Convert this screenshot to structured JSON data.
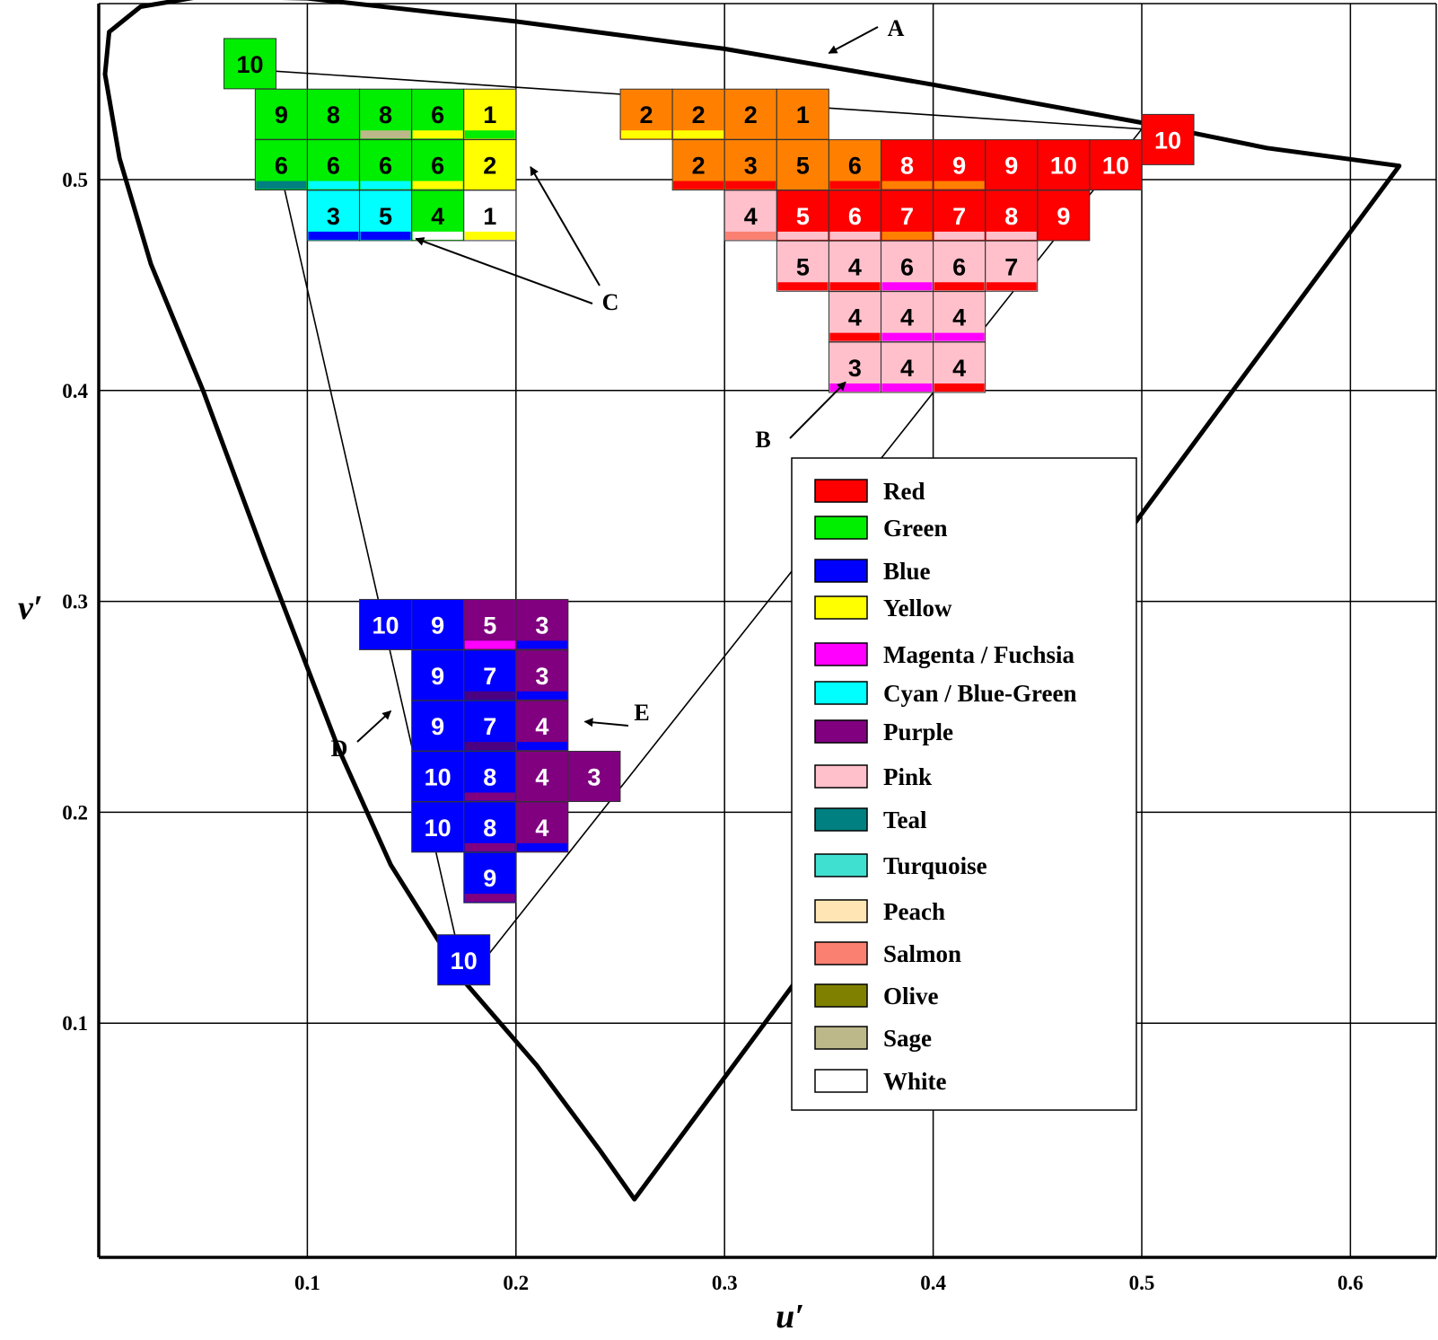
{
  "chart_data": {
    "type": "scatter",
    "xlabel": "u′",
    "ylabel": "v′",
    "xlim": [
      0,
      0.64
    ],
    "ylim": [
      0,
      0.59
    ],
    "grid": true,
    "x_ticks": [
      0.1,
      0.2,
      0.3,
      0.4,
      0.5,
      0.6
    ],
    "y_ticks": [
      0.1,
      0.2,
      0.3,
      0.4,
      0.5
    ],
    "x_tick_labels": [
      "0.1",
      "0.2",
      "0.3",
      "0.4",
      "0.5",
      "0.6"
    ],
    "y_tick_labels": [
      "0.1",
      "0.2",
      "0.3",
      "0.4",
      "0.5"
    ],
    "spectral_locus": [
      [
        0.2568,
        0.0165
      ],
      [
        0.24,
        0.04
      ],
      [
        0.21,
        0.08
      ],
      [
        0.175,
        0.12
      ],
      [
        0.14,
        0.175
      ],
      [
        0.115,
        0.23
      ],
      [
        0.08,
        0.32
      ],
      [
        0.05,
        0.4
      ],
      [
        0.025,
        0.46
      ],
      [
        0.01,
        0.51
      ],
      [
        0.003,
        0.55
      ],
      [
        0.005,
        0.57
      ],
      [
        0.02,
        0.582
      ],
      [
        0.05,
        0.587
      ],
      [
        0.1,
        0.586
      ],
      [
        0.2,
        0.575
      ],
      [
        0.3,
        0.562
      ],
      [
        0.4,
        0.545
      ],
      [
        0.5,
        0.527
      ],
      [
        0.56,
        0.515
      ],
      [
        0.6234,
        0.5065
      ]
    ],
    "gamut_triangle": [
      [
        0.076,
        0.552
      ],
      [
        0.5,
        0.524
      ],
      [
        0.176,
        0.119
      ]
    ],
    "legend_placement": "bottom-right",
    "legend": [
      {
        "label": "Red",
        "color": "#ff0000"
      },
      {
        "label": "Green",
        "color": "#00ee00"
      },
      {
        "label": "Blue",
        "color": "#0000ff"
      },
      {
        "label": "Yellow",
        "color": "#ffff00"
      },
      {
        "label": "Magenta / Fuchsia",
        "color": "#ff00ff"
      },
      {
        "label": "Cyan / Blue-Green",
        "color": "#00ffff"
      },
      {
        "label": "Purple",
        "color": "#800080"
      },
      {
        "label": "Pink",
        "color": "#ffc0cb"
      },
      {
        "label": "Teal",
        "color": "#008080"
      },
      {
        "label": "Turquoise",
        "color": "#40e0d0"
      },
      {
        "label": "Peach",
        "color": "#ffe5b4"
      },
      {
        "label": "Salmon",
        "color": "#fa8072"
      },
      {
        "label": "Olive",
        "color": "#808000"
      },
      {
        "label": "Sage",
        "color": "#bcb88a"
      },
      {
        "label": "White",
        "color": "#ffffff"
      }
    ],
    "annotations": [
      {
        "text": "A",
        "points_to": [
          0.35,
          0.56
        ]
      },
      {
        "text": "B",
        "points_to": [
          0.358,
          0.404
        ]
      },
      {
        "text": "C",
        "points_to": [
          0.152,
          0.472
        ]
      },
      {
        "text": "C",
        "points_to": [
          0.207,
          0.506
        ]
      },
      {
        "text": "D",
        "points_to": [
          0.14,
          0.248
        ]
      },
      {
        "text": "E",
        "points_to": [
          0.233,
          0.243
        ]
      }
    ],
    "cells": [
      {
        "u": 0.0725,
        "v": 0.555,
        "n": "10",
        "color": "#00ee00",
        "stripe": null
      },
      {
        "u": 0.0875,
        "v": 0.531,
        "n": "9",
        "color": "#00ee00",
        "stripe": null
      },
      {
        "u": 0.1125,
        "v": 0.531,
        "n": "8",
        "color": "#00ee00",
        "stripe": null
      },
      {
        "u": 0.1375,
        "v": 0.531,
        "n": "8",
        "color": "#00ee00",
        "stripe": "#bcb88a"
      },
      {
        "u": 0.1625,
        "v": 0.531,
        "n": "6",
        "color": "#00ee00",
        "stripe": "#ffff00"
      },
      {
        "u": 0.1875,
        "v": 0.531,
        "n": "1",
        "color": "#ffff00",
        "stripe": "#00ee00"
      },
      {
        "u": 0.0875,
        "v": 0.507,
        "n": "6",
        "color": "#00ee00",
        "stripe": "#008080"
      },
      {
        "u": 0.1125,
        "v": 0.507,
        "n": "6",
        "color": "#00ee00",
        "stripe": "#00ffff"
      },
      {
        "u": 0.1375,
        "v": 0.507,
        "n": "6",
        "color": "#00ee00",
        "stripe": "#00ffff"
      },
      {
        "u": 0.1625,
        "v": 0.507,
        "n": "6",
        "color": "#00ee00",
        "stripe": "#ffff00"
      },
      {
        "u": 0.1875,
        "v": 0.507,
        "n": "2",
        "color": "#ffff00",
        "stripe": null
      },
      {
        "u": 0.1125,
        "v": 0.483,
        "n": "3",
        "color": "#00ffff",
        "stripe": "#0000ff"
      },
      {
        "u": 0.1375,
        "v": 0.483,
        "n": "5",
        "color": "#00ffff",
        "stripe": "#0000ff"
      },
      {
        "u": 0.1625,
        "v": 0.483,
        "n": "4",
        "color": "#00ee00",
        "stripe": "#ffffff"
      },
      {
        "u": 0.1875,
        "v": 0.483,
        "n": "1",
        "color": "#ffffff",
        "stripe": "#ffff00"
      },
      {
        "u": 0.2625,
        "v": 0.531,
        "n": "2",
        "color": "#ff8000",
        "stripe": "#ffff00"
      },
      {
        "u": 0.2875,
        "v": 0.531,
        "n": "2",
        "color": "#ff8000",
        "stripe": "#ffff00"
      },
      {
        "u": 0.3125,
        "v": 0.531,
        "n": "2",
        "color": "#ff8000",
        "stripe": null
      },
      {
        "u": 0.3375,
        "v": 0.531,
        "n": "1",
        "color": "#ff8000",
        "stripe": null
      },
      {
        "u": 0.2875,
        "v": 0.507,
        "n": "2",
        "color": "#ff8000",
        "stripe": "#ff0000"
      },
      {
        "u": 0.3125,
        "v": 0.507,
        "n": "3",
        "color": "#ff8000",
        "stripe": "#ff0000"
      },
      {
        "u": 0.3375,
        "v": 0.507,
        "n": "5",
        "color": "#ff8000",
        "stripe": null
      },
      {
        "u": 0.3625,
        "v": 0.507,
        "n": "6",
        "color": "#ff8000",
        "stripe": "#ff0000"
      },
      {
        "u": 0.3875,
        "v": 0.507,
        "n": "8",
        "color": "#ff0000",
        "stripe": "#ff8000"
      },
      {
        "u": 0.4125,
        "v": 0.507,
        "n": "9",
        "color": "#ff0000",
        "stripe": "#ff8000"
      },
      {
        "u": 0.4375,
        "v": 0.507,
        "n": "9",
        "color": "#ff0000",
        "stripe": null
      },
      {
        "u": 0.4625,
        "v": 0.507,
        "n": "10",
        "color": "#ff0000",
        "stripe": null
      },
      {
        "u": 0.4875,
        "v": 0.507,
        "n": "10",
        "color": "#ff0000",
        "stripe": null
      },
      {
        "u": 0.5125,
        "v": 0.519,
        "n": "10",
        "color": "#ff0000",
        "stripe": null
      },
      {
        "u": 0.3125,
        "v": 0.483,
        "n": "4",
        "color": "#ffc0cb",
        "stripe": "#fa8072"
      },
      {
        "u": 0.3375,
        "v": 0.483,
        "n": "5",
        "color": "#ff0000",
        "stripe": "#ffc0cb"
      },
      {
        "u": 0.3625,
        "v": 0.483,
        "n": "6",
        "color": "#ff0000",
        "stripe": "#ffc0cb"
      },
      {
        "u": 0.3875,
        "v": 0.483,
        "n": "7",
        "color": "#ff0000",
        "stripe": "#ff8000"
      },
      {
        "u": 0.4125,
        "v": 0.483,
        "n": "7",
        "color": "#ff0000",
        "stripe": "#ffc0cb"
      },
      {
        "u": 0.4375,
        "v": 0.483,
        "n": "8",
        "color": "#ff0000",
        "stripe": "#ffc0cb"
      },
      {
        "u": 0.4625,
        "v": 0.483,
        "n": "9",
        "color": "#ff0000",
        "stripe": null
      },
      {
        "u": 0.3375,
        "v": 0.459,
        "n": "5",
        "color": "#ffc0cb",
        "stripe": "#ff0000"
      },
      {
        "u": 0.3625,
        "v": 0.459,
        "n": "4",
        "color": "#ffc0cb",
        "stripe": "#ff0000"
      },
      {
        "u": 0.3875,
        "v": 0.459,
        "n": "6",
        "color": "#ffc0cb",
        "stripe": "#ff00ff"
      },
      {
        "u": 0.4125,
        "v": 0.459,
        "n": "6",
        "color": "#ffc0cb",
        "stripe": "#ff0000"
      },
      {
        "u": 0.4375,
        "v": 0.459,
        "n": "7",
        "color": "#ffc0cb",
        "stripe": "#ff0000"
      },
      {
        "u": 0.3625,
        "v": 0.435,
        "n": "4",
        "color": "#ffc0cb",
        "stripe": "#ff0000"
      },
      {
        "u": 0.3875,
        "v": 0.435,
        "n": "4",
        "color": "#ffc0cb",
        "stripe": "#ff00ff"
      },
      {
        "u": 0.4125,
        "v": 0.435,
        "n": "4",
        "color": "#ffc0cb",
        "stripe": "#ff00ff"
      },
      {
        "u": 0.3625,
        "v": 0.411,
        "n": "3",
        "color": "#ffc0cb",
        "stripe": "#ff00ff"
      },
      {
        "u": 0.3875,
        "v": 0.411,
        "n": "4",
        "color": "#ffc0cb",
        "stripe": "#ff00ff"
      },
      {
        "u": 0.4125,
        "v": 0.411,
        "n": "4",
        "color": "#ffc0cb",
        "stripe": "#ff0000"
      },
      {
        "u": 0.1375,
        "v": 0.289,
        "n": "10",
        "color": "#0000ff",
        "stripe": null
      },
      {
        "u": 0.1625,
        "v": 0.289,
        "n": "9",
        "color": "#0000ff",
        "stripe": null
      },
      {
        "u": 0.1875,
        "v": 0.289,
        "n": "5",
        "color": "#800080",
        "stripe": "#ff00ff"
      },
      {
        "u": 0.2125,
        "v": 0.289,
        "n": "3",
        "color": "#800080",
        "stripe": "#0000ff"
      },
      {
        "u": 0.1625,
        "v": 0.265,
        "n": "9",
        "color": "#0000ff",
        "stripe": null
      },
      {
        "u": 0.1875,
        "v": 0.265,
        "n": "7",
        "color": "#0000ff",
        "stripe": "#4b0082"
      },
      {
        "u": 0.2125,
        "v": 0.265,
        "n": "3",
        "color": "#800080",
        "stripe": "#0000ff"
      },
      {
        "u": 0.1625,
        "v": 0.241,
        "n": "9",
        "color": "#0000ff",
        "stripe": null
      },
      {
        "u": 0.1875,
        "v": 0.241,
        "n": "7",
        "color": "#0000ff",
        "stripe": "#4b0082"
      },
      {
        "u": 0.2125,
        "v": 0.241,
        "n": "4",
        "color": "#800080",
        "stripe": "#0000ff"
      },
      {
        "u": 0.1625,
        "v": 0.217,
        "n": "10",
        "color": "#0000ff",
        "stripe": null
      },
      {
        "u": 0.1875,
        "v": 0.217,
        "n": "8",
        "color": "#0000ff",
        "stripe": "#800080"
      },
      {
        "u": 0.2125,
        "v": 0.217,
        "n": "4",
        "color": "#800080",
        "stripe": null
      },
      {
        "u": 0.2375,
        "v": 0.217,
        "n": "3",
        "color": "#800080",
        "stripe": null
      },
      {
        "u": 0.1625,
        "v": 0.193,
        "n": "10",
        "color": "#0000ff",
        "stripe": null
      },
      {
        "u": 0.1875,
        "v": 0.193,
        "n": "8",
        "color": "#0000ff",
        "stripe": "#800080"
      },
      {
        "u": 0.2125,
        "v": 0.193,
        "n": "4",
        "color": "#800080",
        "stripe": "#0000ff"
      },
      {
        "u": 0.1875,
        "v": 0.169,
        "n": "9",
        "color": "#0000ff",
        "stripe": "#800080"
      },
      {
        "u": 0.175,
        "v": 0.13,
        "n": "10",
        "color": "#0000ff",
        "stripe": null
      }
    ]
  }
}
